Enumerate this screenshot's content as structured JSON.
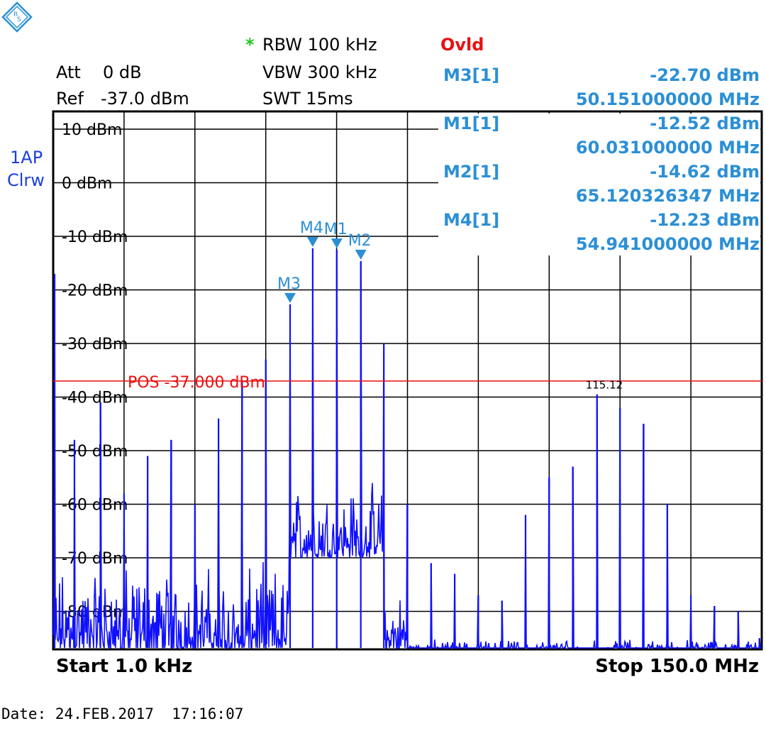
{
  "header": {
    "att_label": "Att",
    "att_value": "0 dB",
    "ref_label": "Ref",
    "ref_value": "-37.0 dBm",
    "rbw_star": "*",
    "rbw": "RBW 100 kHz",
    "vbw": "VBW 300 kHz",
    "swt": "SWT 15ms",
    "ovld": "Ovld"
  },
  "trace_info": {
    "line1": "1AP",
    "line2": "Clrw"
  },
  "marker_table": [
    {
      "name": "M3[1]",
      "level": "-22.70 dBm",
      "freq": "50.151000000 MHz"
    },
    {
      "name": "M1[1]",
      "level": "-12.52 dBm",
      "freq": "60.031000000 MHz"
    },
    {
      "name": "M2[1]",
      "level": "-14.62 dBm",
      "freq": "65.120326347 MHz"
    },
    {
      "name": "M4[1]",
      "level": "-12.23 dBm",
      "freq": "54.941000000 MHz"
    }
  ],
  "footer": {
    "start": "Start 1.0 kHz",
    "stop": "Stop 150.0 MHz",
    "date": "Date: 24.FEB.2017  17:16:07"
  },
  "colors": {
    "trace": "#1010ff",
    "marker": "#2b8fd6",
    "display_line": "#e81010",
    "grid": "#000000"
  },
  "chart_data": {
    "type": "line",
    "xlabel": "",
    "ylabel": "",
    "x_range_mhz": [
      0.001,
      150.0
    ],
    "ylim": [
      -88,
      13
    ],
    "y_tick_labels": [
      "10 dBm",
      "0 dBm",
      "-10 dBm",
      "-20 dBm",
      "-30 dBm",
      "-40 dBm",
      "-50 dBm",
      "-60 dBm",
      "-70 dBm",
      "-80 dBm"
    ],
    "y_tick_values": [
      10,
      0,
      -10,
      -20,
      -30,
      -40,
      -50,
      -60,
      -70,
      -80
    ],
    "grid": true,
    "display_line": {
      "label": "POS  -37.000 dBm",
      "value": -37.0
    },
    "annotation": {
      "text": "115.12",
      "x": 115.12,
      "y": -39.5
    },
    "markers": [
      {
        "label": "M3",
        "x": 50.151,
        "y": -22.7
      },
      {
        "label": "M4",
        "x": 54.941,
        "y": -12.23
      },
      {
        "label": "M1",
        "x": 60.031,
        "y": -12.52
      },
      {
        "label": "M2",
        "x": 65.12,
        "y": -14.62
      }
    ],
    "peaks": [
      {
        "x": 0.3,
        "y": -17
      },
      {
        "x": 4.5,
        "y": -48
      },
      {
        "x": 10.0,
        "y": -41
      },
      {
        "x": 15.0,
        "y": -58
      },
      {
        "x": 20.0,
        "y": -51
      },
      {
        "x": 25.0,
        "y": -48
      },
      {
        "x": 30.0,
        "y": -60
      },
      {
        "x": 35.0,
        "y": -44
      },
      {
        "x": 40.0,
        "y": -37
      },
      {
        "x": 45.0,
        "y": -33
      },
      {
        "x": 50.151,
        "y": -22.7
      },
      {
        "x": 54.941,
        "y": -12.23
      },
      {
        "x": 60.031,
        "y": -12.52
      },
      {
        "x": 65.12,
        "y": -14.62
      },
      {
        "x": 70.0,
        "y": -30
      },
      {
        "x": 75.0,
        "y": -60
      },
      {
        "x": 80.0,
        "y": -71
      },
      {
        "x": 85.0,
        "y": -73
      },
      {
        "x": 90.0,
        "y": -77
      },
      {
        "x": 95.0,
        "y": -78
      },
      {
        "x": 100.0,
        "y": -62
      },
      {
        "x": 105.0,
        "y": -55
      },
      {
        "x": 110.0,
        "y": -53
      },
      {
        "x": 115.12,
        "y": -39.5
      },
      {
        "x": 120.0,
        "y": -42
      },
      {
        "x": 125.0,
        "y": -45
      },
      {
        "x": 130.0,
        "y": -60
      },
      {
        "x": 135.0,
        "y": -77
      },
      {
        "x": 140.0,
        "y": -79
      },
      {
        "x": 145.0,
        "y": -80
      },
      {
        "x": 149.5,
        "y": -85
      }
    ],
    "noise_bands": [
      {
        "x_range": [
          0.001,
          50.0
        ],
        "level_range": [
          -88,
          -70
        ]
      },
      {
        "x_range": [
          50.0,
          70.0
        ],
        "level_range": [
          -70,
          -55
        ]
      },
      {
        "x_range": [
          70.0,
          75.0
        ],
        "level_range": [
          -88,
          -75
        ]
      },
      {
        "x_range": [
          75.0,
          150.0
        ],
        "level_range": [
          -88,
          -85
        ]
      }
    ]
  }
}
